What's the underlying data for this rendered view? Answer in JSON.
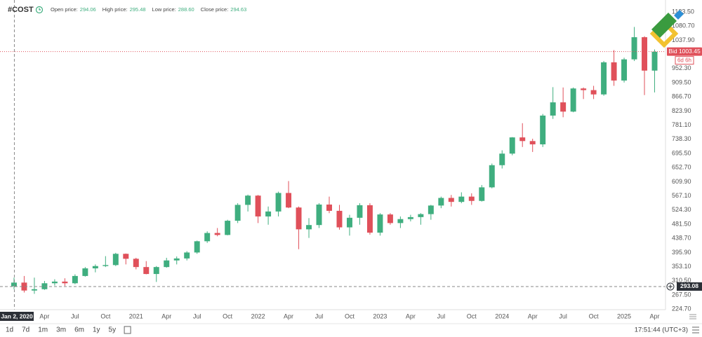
{
  "chart_data": {
    "type": "candlestick",
    "symbol": "#COST",
    "readout": [
      {
        "name": "Open price:",
        "value": 294.06
      },
      {
        "name": "High price:",
        "value": 295.48
      },
      {
        "name": "Low price:",
        "value": {
          "value": 288.6,
          "label": "288.60"
        }
      },
      {
        "name": "Close price:",
        "value": 294.63
      }
    ],
    "x": [
      "2020-01",
      "2020-02",
      "2020-03",
      "2020-04",
      "2020-05",
      "2020-06",
      "2020-07",
      "2020-08",
      "2020-09",
      "2020-10",
      "2020-11",
      "2020-12",
      "2021-01",
      "2021-02",
      "2021-03",
      "2021-04",
      "2021-05",
      "2021-06",
      "2021-07",
      "2021-08",
      "2021-09",
      "2021-10",
      "2021-11",
      "2021-12",
      "2022-01",
      "2022-02",
      "2022-03",
      "2022-04",
      "2022-05",
      "2022-06",
      "2022-07",
      "2022-08",
      "2022-09",
      "2022-10",
      "2022-11",
      "2022-12",
      "2023-01",
      "2023-02",
      "2023-03",
      "2023-04",
      "2023-05",
      "2023-06",
      "2023-07",
      "2023-08",
      "2023-09",
      "2023-10",
      "2023-11",
      "2023-12",
      "2024-01",
      "2024-02",
      "2024-03",
      "2024-04",
      "2024-05",
      "2024-06",
      "2024-07",
      "2024-08",
      "2024-09",
      "2024-10",
      "2024-11",
      "2024-12",
      "2025-01",
      "2025-02",
      "2025-03",
      "2025-04"
    ],
    "open": [
      294,
      305,
      281,
      285,
      303,
      308,
      303,
      325,
      348,
      355,
      358,
      392,
      377,
      352,
      331,
      352,
      372,
      378,
      396,
      430,
      455,
      449,
      492,
      540,
      568,
      505,
      520,
      576,
      532,
      466,
      479,
      541,
      522,
      472,
      501,
      539,
      456,
      511,
      485,
      497,
      503,
      512,
      538,
      561,
      549,
      565,
      552,
      593,
      660,
      695,
      744,
      733,
      723,
      810,
      850,
      822,
      892,
      887,
      874,
      971,
      916,
      980,
      1047,
      946
    ],
    "high": [
      320,
      325,
      320,
      310,
      315,
      318,
      330,
      352,
      360,
      385,
      395,
      393,
      380,
      370,
      355,
      380,
      384,
      400,
      432,
      460,
      470,
      495,
      545,
      571,
      570,
      535,
      580,
      612,
      535,
      500,
      545,
      565,
      540,
      510,
      545,
      545,
      515,
      515,
      505,
      510,
      515,
      540,
      565,
      570,
      578,
      575,
      600,
      665,
      705,
      745,
      787,
      740,
      815,
      896,
      895,
      895,
      895,
      900,
      975,
      1008,
      985,
      1078,
      1050,
      1010
    ],
    "low": [
      285,
      275,
      271,
      283,
      296,
      295,
      300,
      323,
      336,
      352,
      355,
      360,
      345,
      330,
      307,
      350,
      360,
      372,
      392,
      425,
      445,
      448,
      485,
      520,
      485,
      480,
      505,
      530,
      406,
      440,
      470,
      515,
      465,
      447,
      480,
      450,
      447,
      480,
      470,
      490,
      480,
      495,
      530,
      535,
      545,
      540,
      550,
      590,
      650,
      690,
      715,
      700,
      715,
      800,
      805,
      820,
      860,
      860,
      870,
      900,
      910,
      975,
      872,
      880
    ],
    "close": [
      305,
      281,
      285,
      303,
      308,
      303,
      325,
      348,
      355,
      358,
      392,
      377,
      352,
      331,
      352,
      372,
      378,
      396,
      430,
      455,
      449,
      492,
      540,
      568,
      505,
      520,
      576,
      532,
      466,
      479,
      541,
      522,
      472,
      501,
      539,
      456,
      511,
      485,
      497,
      503,
      512,
      538,
      561,
      549,
      565,
      552,
      593,
      660,
      695,
      744,
      733,
      723,
      810,
      850,
      822,
      892,
      887,
      874,
      971,
      916,
      980,
      1047,
      946,
      1003
    ],
    "up_color": "#3fae7f",
    "down_color": "#e0505a",
    "xlim": [
      "2019-11",
      "2025-05"
    ],
    "xticks": [
      {
        "value": "2020-01-02",
        "label": "Jan 2, 2020"
      },
      {
        "value": "2020-04",
        "label": "Apr"
      },
      {
        "value": "2020-07",
        "label": "Jul"
      },
      {
        "value": "2020-10",
        "label": "Oct"
      },
      {
        "value": "2021-01",
        "label": "2021"
      },
      {
        "value": "2021-04",
        "label": "Apr"
      },
      {
        "value": "2021-07",
        "label": "Jul"
      },
      {
        "value": "2021-10",
        "label": "Oct"
      },
      {
        "value": "2022-01",
        "label": "2022"
      },
      {
        "value": "2022-04",
        "label": "Apr"
      },
      {
        "value": "2022-07",
        "label": "Jul"
      },
      {
        "value": "2022-10",
        "label": "Oct"
      },
      {
        "value": "2023-01",
        "label": "2023"
      },
      {
        "value": "2023-04",
        "label": "Apr"
      },
      {
        "value": "2023-07",
        "label": "Jul"
      },
      {
        "value": "2023-10",
        "label": "Oct"
      },
      {
        "value": "2024-01",
        "label": "2024"
      },
      {
        "value": "2024-04",
        "label": "Apr"
      },
      {
        "value": "2024-07",
        "label": "Jul"
      },
      {
        "value": "2024-10",
        "label": "Oct"
      },
      {
        "value": "2025-01",
        "label": "2025"
      },
      {
        "value": "2025-04",
        "label": "Apr"
      }
    ],
    "ylim": [
      223.1,
      1159.5
    ],
    "yticks": [
      {
        "value": 224.7,
        "label": "224.70"
      },
      {
        "value": 267.5,
        "label": "267.50"
      },
      {
        "value": 310.5,
        "label": "310.50"
      },
      {
        "value": 353.1,
        "label": "353.10"
      },
      {
        "value": 395.9,
        "label": "395.90"
      },
      {
        "value": 438.7,
        "label": "438.70"
      },
      {
        "value": 481.5,
        "label": "481.50"
      },
      {
        "value": 524.3,
        "label": "524.30"
      },
      {
        "value": 567.1,
        "label": "567.10"
      },
      {
        "value": 609.9,
        "label": "609.90"
      },
      {
        "value": 652.7,
        "label": "652.70"
      },
      {
        "value": 695.5,
        "label": "695.50"
      },
      {
        "value": 738.3,
        "label": "738.30"
      },
      {
        "value": 781.1,
        "label": "781.10"
      },
      {
        "value": 823.9,
        "label": "823.90"
      },
      {
        "value": 866.7,
        "label": "866.70"
      },
      {
        "value": 909.5,
        "label": "909.50"
      },
      {
        "value": 952.3,
        "label": "952.30"
      },
      {
        "value": 1037.9,
        "label": "1037.90"
      },
      {
        "value": 1080.7,
        "label": "1080.70"
      },
      {
        "value": 1123.5,
        "label": "1123.50"
      }
    ],
    "grid": true,
    "bid": {
      "value": 1003.45,
      "label": "Bid 1003.45"
    },
    "countdown": "6d 6h",
    "crosshair_price": 293.08,
    "range_buttons": [
      "1d",
      "7d",
      "1m",
      "3m",
      "6m",
      "1y",
      "5y"
    ],
    "clock": "17:51:44 (UTC+3)"
  }
}
